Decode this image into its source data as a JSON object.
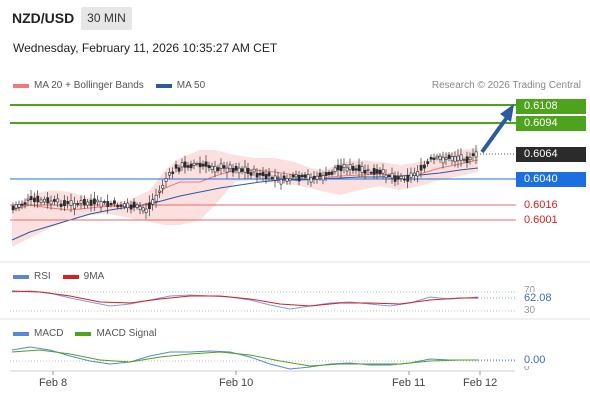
{
  "header": {
    "symbol": "NZD/USD",
    "timeframe": "30 MIN"
  },
  "timestamp": "Wednesday, February 11, 2026 10:35:27 AM CET",
  "legend": {
    "ma20": {
      "label": "MA 20 + Bollinger Bands",
      "color": "#f07a7a"
    },
    "ma50": {
      "label": "MA 50",
      "color": "#2b5a9e"
    }
  },
  "credit": "Research © 2026 Trading Central",
  "levels": {
    "target2": "0.6108",
    "target1": "0.6094",
    "last": "0.6064",
    "pivot": "0.6040",
    "support1": "0.6016",
    "support2": "0.6001"
  },
  "rsi": {
    "label": "RSI",
    "ma_label": "9MA",
    "value": "62.08",
    "tick_70": "70",
    "tick_30": "30"
  },
  "macd": {
    "label": "MACD",
    "signal_label": "MACD Signal",
    "value": "0.00",
    "tick_0": "0"
  },
  "x_axis": [
    "Feb 8",
    "Feb 10",
    "Feb 11",
    "Feb 12"
  ],
  "colors": {
    "green": "#4ea31c",
    "blue": "#1b6fe0",
    "red": "#d32020",
    "candle": "#2b2b2b",
    "band": "#fbd5d5",
    "rsi": "#7a9fdc",
    "rsi_ma": "#d32020",
    "macd": "#5b86d6",
    "macd_signal": "#4ea31c",
    "arrow": "#2b5a9e"
  }
}
